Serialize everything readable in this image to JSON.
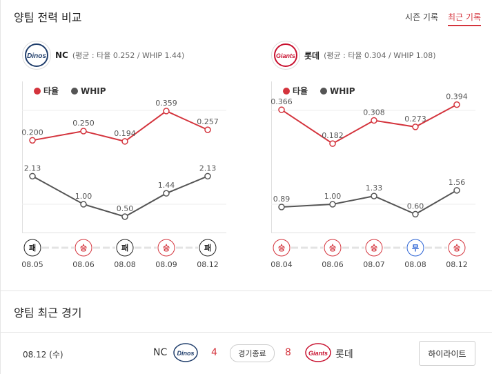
{
  "section1": {
    "title": "양팀 전력 비교"
  },
  "tabs": [
    {
      "label": "시즌 기록",
      "active": false
    },
    {
      "label": "최근 기록",
      "active": true
    }
  ],
  "nc": {
    "team": "NC",
    "stats": "(평균 : 타율 0.252 / WHIP 1.44)",
    "logo_text": "Dinos"
  },
  "lotte": {
    "team": "롯데",
    "stats": "(평균 : 타율 0.304 / WHIP 1.08)",
    "logo_text": "Giants"
  },
  "legend": {
    "avg": "타율",
    "whip": "WHIP"
  },
  "colors": {
    "avg": "#d4343d",
    "whip": "#555555",
    "win": "#d4343d",
    "loss": "#222222",
    "draw": "#2a62d4"
  },
  "chart_data": [
    {
      "type": "line",
      "team": "NC",
      "x": [
        "08.05",
        "08.06",
        "08.08",
        "08.09",
        "08.12"
      ],
      "series": [
        {
          "name": "타율",
          "values": [
            0.2,
            0.25,
            0.194,
            0.359,
            0.257
          ],
          "labels": [
            "0.200",
            "0.250",
            "0.194",
            "0.359",
            "0.257"
          ]
        },
        {
          "name": "WHIP",
          "values": [
            2.13,
            1.0,
            0.5,
            1.44,
            2.13
          ],
          "labels": [
            "2.13",
            "1.00",
            "0.50",
            "1.44",
            "2.13"
          ]
        }
      ],
      "results": [
        "패",
        "승",
        "패",
        "승",
        "패"
      ]
    },
    {
      "type": "line",
      "team": "롯데",
      "x": [
        "08.04",
        "08.06",
        "08.07",
        "08.08",
        "08.12"
      ],
      "series": [
        {
          "name": "타율",
          "values": [
            0.366,
            0.182,
            0.308,
            0.273,
            0.394
          ],
          "labels": [
            "0.366",
            "0.182",
            "0.308",
            "0.273",
            "0.394"
          ]
        },
        {
          "name": "WHIP",
          "values": [
            0.89,
            1.0,
            1.33,
            0.6,
            1.56
          ],
          "labels": [
            "0.89",
            "1.00",
            "1.33",
            "0.60",
            "1.56"
          ]
        }
      ],
      "results": [
        "승",
        "승",
        "승",
        "무",
        "승"
      ]
    }
  ],
  "section2": {
    "title": "양팀 최근 경기"
  },
  "recent_game": {
    "date": "08.12 (수)",
    "home_team": "NC",
    "home_score": "4",
    "status": "경기종료",
    "away_score": "8",
    "away_team": "롯데",
    "highlight": "하이라이트"
  }
}
